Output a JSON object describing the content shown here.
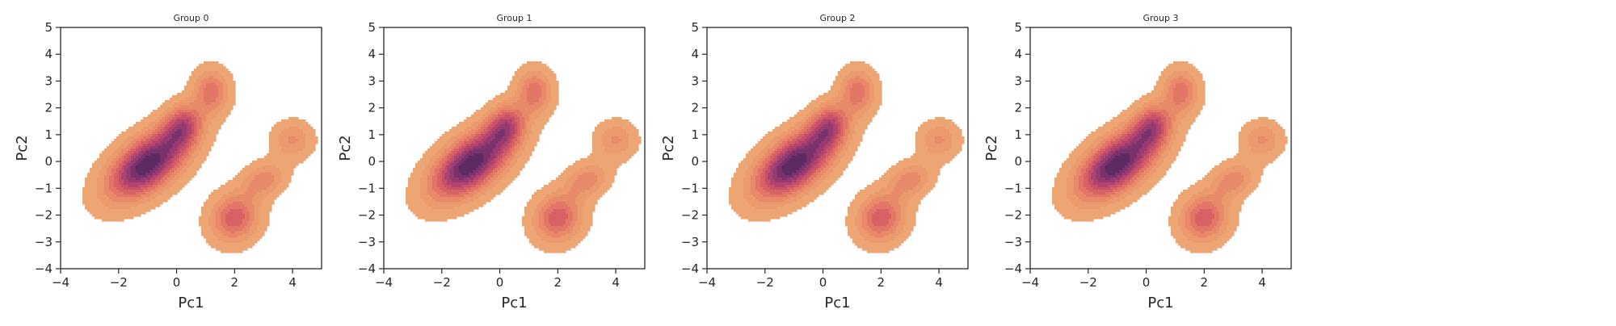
{
  "chart_data": [
    {
      "type": "kde_filled_contour",
      "title": "Group 0",
      "xlabel": "Pc1",
      "ylabel": "Pc2",
      "xlim": [
        -4,
        5
      ],
      "ylim": [
        -4,
        5
      ],
      "xticks": [
        -4,
        -2,
        0,
        2,
        4
      ],
      "yticks": [
        -4,
        -3,
        -2,
        -1,
        0,
        1,
        2,
        3,
        4,
        5
      ],
      "density_modes": [
        {
          "x": -1.0,
          "y": -0.1,
          "weight": 1.0
        },
        {
          "x": 0.2,
          "y": 1.3,
          "weight": 0.55
        },
        {
          "x": 1.2,
          "y": 2.6,
          "weight": 0.4
        },
        {
          "x": 2.0,
          "y": -2.1,
          "weight": 0.5
        },
        {
          "x": 3.0,
          "y": -0.7,
          "weight": 0.3
        },
        {
          "x": 4.0,
          "y": 0.8,
          "weight": 0.25
        }
      ],
      "contour_levels": 10,
      "grid": false
    },
    {
      "type": "kde_filled_contour",
      "title": "Group 1",
      "xlabel": "Pc1",
      "ylabel": "Pc2",
      "xlim": [
        -4,
        5
      ],
      "ylim": [
        -4,
        5
      ],
      "xticks": [
        -4,
        -2,
        0,
        2,
        4
      ],
      "yticks": [
        -4,
        -3,
        -2,
        -1,
        0,
        1,
        2,
        3,
        4,
        5
      ],
      "density_modes": [
        {
          "x": -1.0,
          "y": -0.1,
          "weight": 1.0
        },
        {
          "x": 0.2,
          "y": 1.3,
          "weight": 0.55
        },
        {
          "x": 1.2,
          "y": 2.6,
          "weight": 0.4
        },
        {
          "x": 2.0,
          "y": -2.1,
          "weight": 0.5
        },
        {
          "x": 3.0,
          "y": -0.7,
          "weight": 0.3
        },
        {
          "x": 4.0,
          "y": 0.8,
          "weight": 0.25
        }
      ],
      "contour_levels": 10,
      "grid": false
    },
    {
      "type": "kde_filled_contour",
      "title": "Group 2",
      "xlabel": "Pc1",
      "ylabel": "Pc2",
      "xlim": [
        -4,
        5
      ],
      "ylim": [
        -4,
        5
      ],
      "xticks": [
        -4,
        -2,
        0,
        2,
        4
      ],
      "yticks": [
        -4,
        -3,
        -2,
        -1,
        0,
        1,
        2,
        3,
        4,
        5
      ],
      "density_modes": [
        {
          "x": -1.0,
          "y": -0.1,
          "weight": 1.0
        },
        {
          "x": 0.2,
          "y": 1.3,
          "weight": 0.55
        },
        {
          "x": 1.2,
          "y": 2.6,
          "weight": 0.4
        },
        {
          "x": 2.0,
          "y": -2.1,
          "weight": 0.5
        },
        {
          "x": 3.0,
          "y": -0.7,
          "weight": 0.3
        },
        {
          "x": 4.0,
          "y": 0.8,
          "weight": 0.25
        }
      ],
      "contour_levels": 10,
      "grid": false
    },
    {
      "type": "kde_filled_contour",
      "title": "Group 3",
      "xlabel": "Pc1",
      "ylabel": "Pc2",
      "xlim": [
        -4,
        5
      ],
      "ylim": [
        -4,
        5
      ],
      "xticks": [
        -4,
        -2,
        0,
        2,
        4
      ],
      "yticks": [
        -4,
        -3,
        -2,
        -1,
        0,
        1,
        2,
        3,
        4,
        5
      ],
      "density_modes": [
        {
          "x": -1.0,
          "y": -0.1,
          "weight": 1.0
        },
        {
          "x": 0.2,
          "y": 1.3,
          "weight": 0.55
        },
        {
          "x": 1.2,
          "y": 2.6,
          "weight": 0.4
        },
        {
          "x": 2.0,
          "y": -2.1,
          "weight": 0.5
        },
        {
          "x": 3.0,
          "y": -0.7,
          "weight": 0.3
        },
        {
          "x": 4.0,
          "y": 0.8,
          "weight": 0.25
        }
      ],
      "contour_levels": 10,
      "grid": false
    }
  ],
  "colors": {
    "palette": [
      "#eda574",
      "#eb9a6e",
      "#e8896a",
      "#e27566",
      "#d86166",
      "#c8506a",
      "#b1446e",
      "#963b6f",
      "#7a326d",
      "#5e2a64"
    ],
    "axis": "#262626",
    "background": "#ffffff"
  }
}
